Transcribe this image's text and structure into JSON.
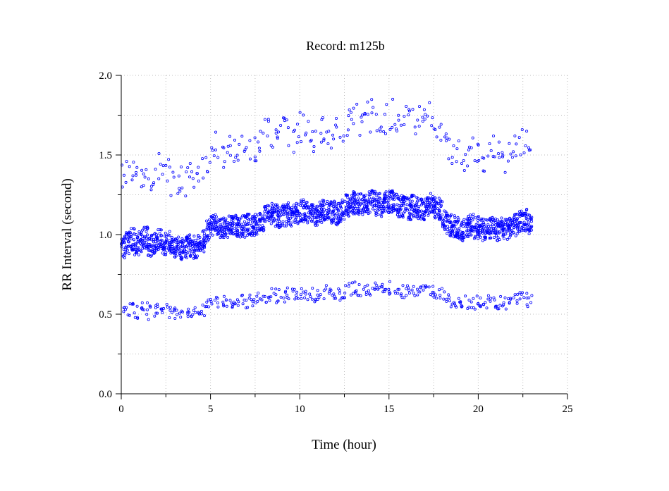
{
  "chart_data": {
    "type": "scatter",
    "title": "Record:  m125b",
    "xlabel": "Time (hour)",
    "ylabel": "RR Interval (second)",
    "xlim": [
      0,
      25
    ],
    "ylim": [
      0,
      2.0
    ],
    "x_ticks": [
      0,
      5,
      10,
      15,
      20,
      25
    ],
    "x_minor_ticks": [
      2.5,
      7.5,
      12.5,
      17.5,
      22.5
    ],
    "y_ticks": [
      0.0,
      0.5,
      1.0,
      1.5,
      2.0
    ],
    "y_tick_labels": [
      "0.0",
      "0.5",
      "1.0",
      "1.5",
      "2.0"
    ],
    "y_minor_ticks": [
      0.25,
      0.75,
      1.25,
      1.75
    ],
    "grid": true,
    "marker": "open-circle",
    "color": "#0000ff",
    "series": [
      {
        "description_free": true,
        "x": [
          0.0,
          0.25,
          0.5,
          0.75,
          1.0,
          1.25,
          1.5,
          1.75,
          2.0,
          2.25,
          2.5,
          2.75,
          3.0,
          3.25,
          3.5,
          3.75,
          4.0,
          4.25,
          4.5,
          4.75,
          5.0,
          5.25,
          5.5,
          5.75,
          6.0,
          6.25,
          6.5,
          6.75,
          7.0,
          7.25,
          7.5,
          7.75,
          8.0,
          8.25,
          8.5,
          8.75,
          9.0,
          9.25,
          9.5,
          9.75,
          10.0,
          10.25,
          10.5,
          10.75,
          11.0,
          11.25,
          11.5,
          11.75,
          12.0,
          12.25,
          12.5,
          12.75,
          13.0,
          13.25,
          13.5,
          13.75,
          14.0,
          14.25,
          14.5,
          14.75,
          15.0,
          15.25,
          15.5,
          15.75,
          16.0,
          16.25,
          16.5,
          16.75,
          17.0,
          17.25,
          17.5,
          17.75,
          18.0,
          18.25,
          18.5,
          18.75,
          19.0,
          19.25,
          19.5,
          19.75,
          20.0,
          20.25,
          20.5,
          20.75,
          21.0,
          21.25,
          21.5,
          21.75,
          22.0,
          22.25,
          22.5,
          22.75
        ],
        "y": [
          0.92,
          0.95,
          0.97,
          0.94,
          0.96,
          0.98,
          0.93,
          0.95,
          0.97,
          0.94,
          0.95,
          0.93,
          0.92,
          0.91,
          0.92,
          0.93,
          0.92,
          0.93,
          0.96,
          1.03,
          1.05,
          1.06,
          1.05,
          1.04,
          1.05,
          1.06,
          1.04,
          1.05,
          1.06,
          1.05,
          1.07,
          1.08,
          1.12,
          1.13,
          1.12,
          1.11,
          1.12,
          1.13,
          1.12,
          1.13,
          1.15,
          1.14,
          1.13,
          1.12,
          1.14,
          1.16,
          1.15,
          1.14,
          1.13,
          1.15,
          1.18,
          1.19,
          1.2,
          1.19,
          1.18,
          1.2,
          1.21,
          1.19,
          1.18,
          1.2,
          1.21,
          1.19,
          1.18,
          1.17,
          1.16,
          1.18,
          1.17,
          1.16,
          1.18,
          1.19,
          1.17,
          1.16,
          1.1,
          1.06,
          1.05,
          1.04,
          1.03,
          1.05,
          1.06,
          1.04,
          1.05,
          1.03,
          1.04,
          1.05,
          1.03,
          1.04,
          1.03,
          1.05,
          1.06,
          1.08,
          1.09,
          1.07
        ]
      }
    ]
  }
}
